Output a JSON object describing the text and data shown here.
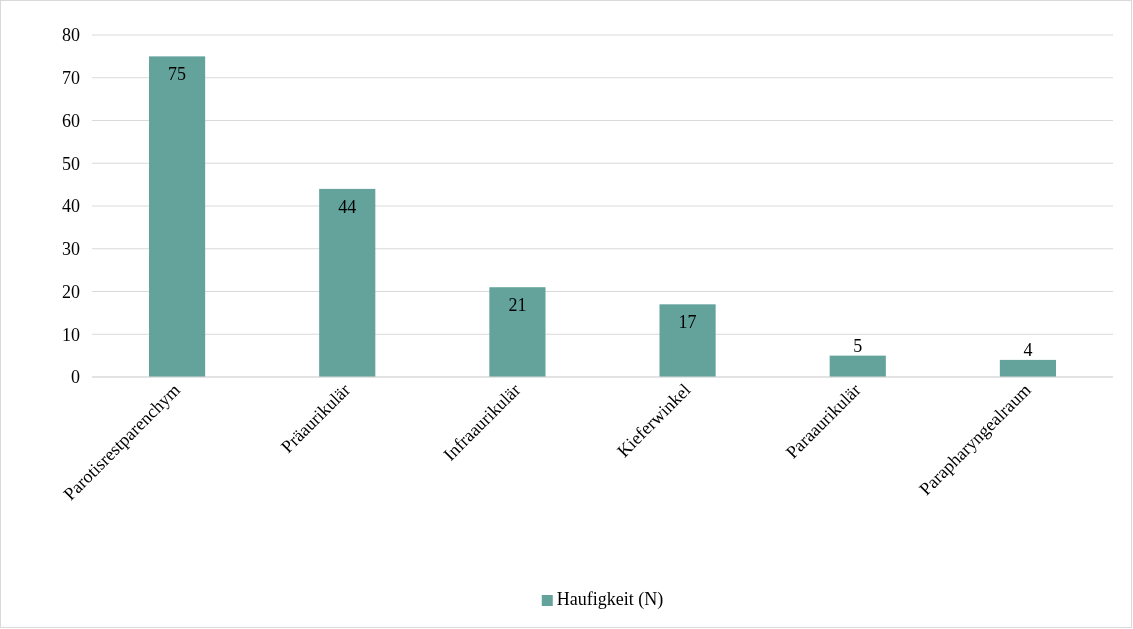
{
  "chart_data": {
    "type": "bar",
    "categories": [
      "Parotisrestparenchym",
      "Präaurikulär",
      "Infraaurikulär",
      "Kieferwinkel",
      "Paraaurikulär",
      "Parapharyngealraum"
    ],
    "series": [
      {
        "name": "Haufigkeit (N)",
        "color": "#63a39c",
        "values": [
          75,
          44,
          21,
          17,
          5,
          4
        ]
      }
    ],
    "ylim": [
      0,
      80
    ],
    "yticks": [
      0,
      10,
      20,
      30,
      40,
      50,
      60,
      70,
      80
    ],
    "grid": "y",
    "legend": "bottom",
    "data_labels": true
  }
}
